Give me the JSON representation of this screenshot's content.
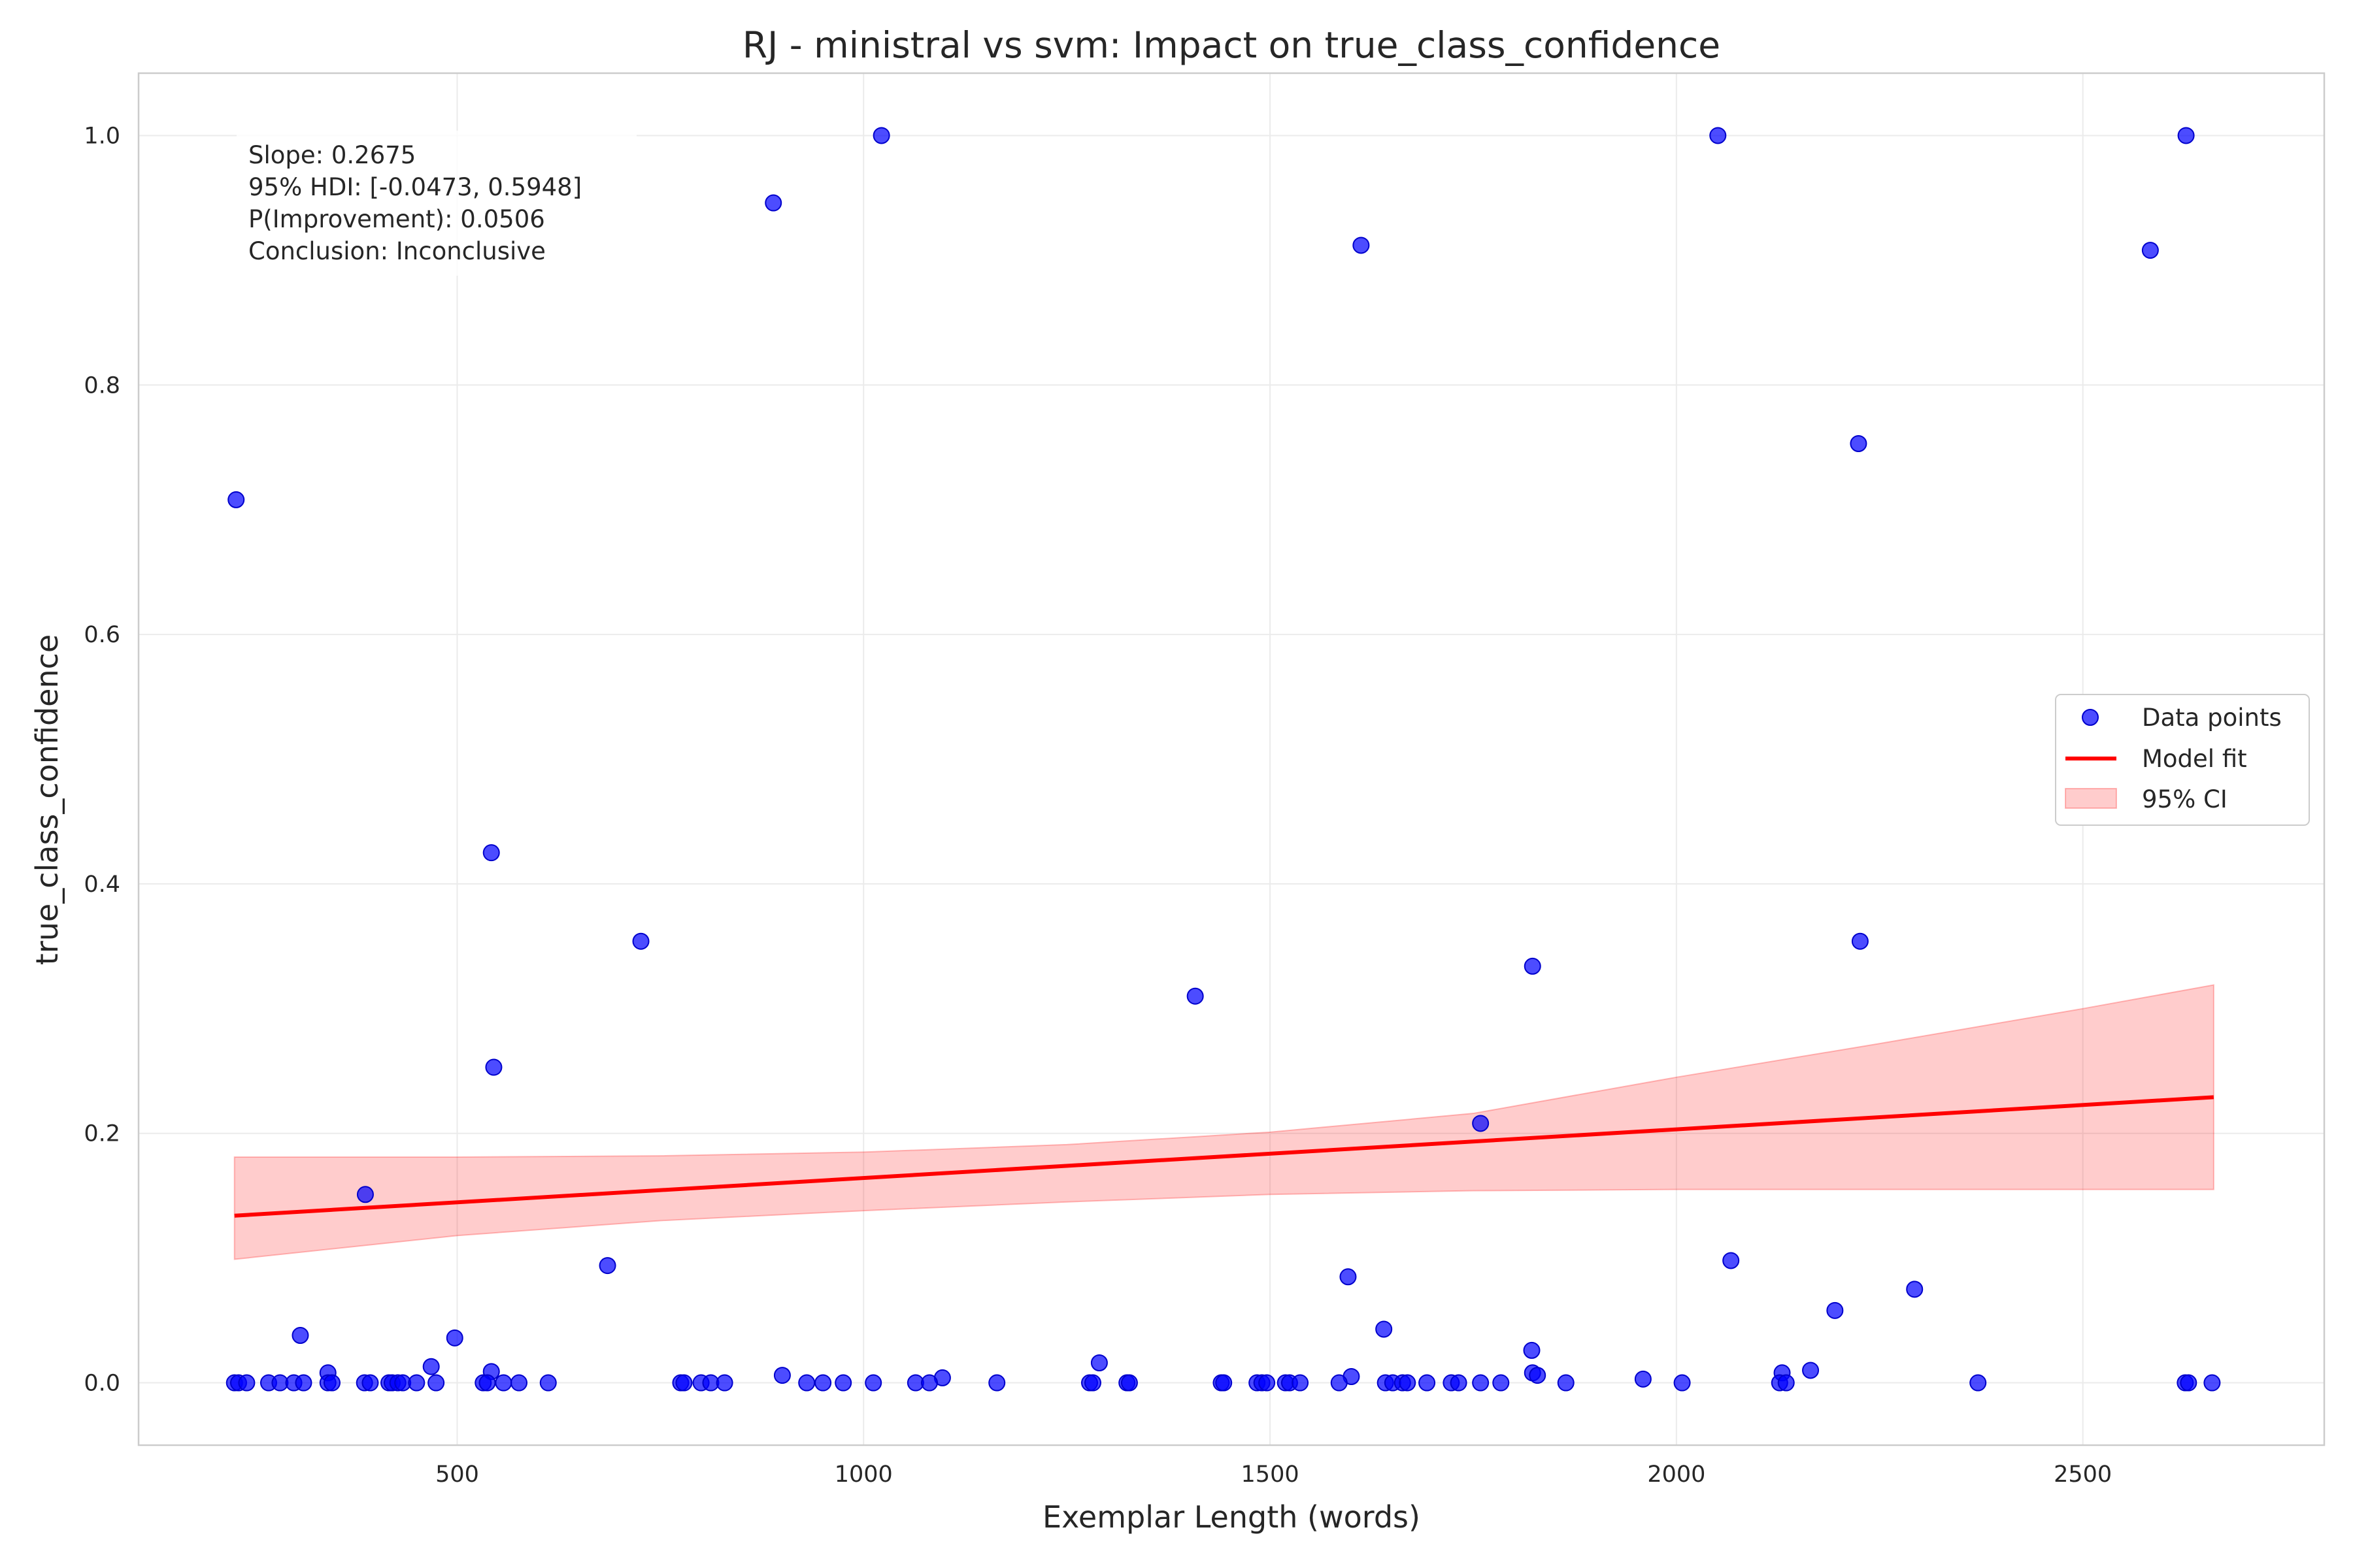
{
  "chart_data": {
    "type": "scatter",
    "title": "RJ - ministral vs svm: Impact on true_class_confidence",
    "xlabel": "Exemplar Length (words)",
    "ylabel": "true_class_confidence",
    "xlim": [
      108,
      2797
    ],
    "ylim": [
      -0.05,
      1.05
    ],
    "x_ticks": [
      500,
      1000,
      1500,
      2000,
      2500
    ],
    "x_tick_labels": [
      "500",
      "1000",
      "1500",
      "2000",
      "2500"
    ],
    "y_ticks": [
      0.0,
      0.2,
      0.4,
      0.6,
      0.8,
      1.0
    ],
    "y_tick_labels": [
      "0.0",
      "0.2",
      "0.4",
      "0.6",
      "0.8",
      "1.0"
    ],
    "grid": true,
    "legend_position": "center-right",
    "annotation": [
      "Slope: 0.2675",
      "95% HDI: [-0.0473, 0.5948]",
      "P(Improvement): 0.0506",
      "Conclusion: Inconclusive"
    ],
    "series": [
      {
        "name": "Data points",
        "kind": "scatter",
        "color": "#0000ff",
        "points": [
          [
            228,
            0.708
          ],
          [
            889,
            0.946
          ],
          [
            1022,
            1.0
          ],
          [
            1612,
            0.912
          ],
          [
            2051,
            1.0
          ],
          [
            2583,
            0.908
          ],
          [
            2627,
            1.0
          ],
          [
            2224,
            0.753
          ],
          [
            542,
            0.425
          ],
          [
            726,
            0.354
          ],
          [
            1408,
            0.31
          ],
          [
            1823,
            0.334
          ],
          [
            2226,
            0.354
          ],
          [
            545,
            0.253
          ],
          [
            1759,
            0.208
          ],
          [
            387,
            0.151
          ],
          [
            685,
            0.094
          ],
          [
            1596,
            0.085
          ],
          [
            2067,
            0.098
          ],
          [
            2293,
            0.075
          ],
          [
            2195,
            0.058
          ],
          [
            1640,
            0.043
          ],
          [
            307,
            0.038
          ],
          [
            497,
            0.036
          ],
          [
            1822,
            0.026
          ],
          [
            1290,
            0.016
          ],
          [
            468,
            0.013
          ],
          [
            2165,
            0.01
          ],
          [
            2130,
            0.008
          ],
          [
            1823,
            0.008
          ],
          [
            900,
            0.006
          ],
          [
            1097,
            0.004
          ],
          [
            1959,
            0.003
          ],
          [
            1600,
            0.005
          ],
          [
            1829,
            0.006
          ],
          [
            542,
            0.009
          ],
          [
            341,
            0.008
          ],
          [
            226,
            0.0
          ],
          [
            231,
            0.0
          ],
          [
            241,
            0.0
          ],
          [
            268,
            0.0
          ],
          [
            282,
            0.0
          ],
          [
            299,
            0.0
          ],
          [
            311,
            0.0
          ],
          [
            341,
            0.0
          ],
          [
            346,
            0.0
          ],
          [
            386,
            0.0
          ],
          [
            393,
            0.0
          ],
          [
            416,
            0.0
          ],
          [
            420,
            0.0
          ],
          [
            427,
            0.0
          ],
          [
            433,
            0.0
          ],
          [
            450,
            0.0
          ],
          [
            474,
            0.0
          ],
          [
            532,
            0.0
          ],
          [
            537,
            0.0
          ],
          [
            557,
            0.0
          ],
          [
            576,
            0.0
          ],
          [
            612,
            0.0
          ],
          [
            775,
            0.0
          ],
          [
            779,
            0.0
          ],
          [
            800,
            0.0
          ],
          [
            812,
            0.0
          ],
          [
            829,
            0.0
          ],
          [
            930,
            0.0
          ],
          [
            950,
            0.0
          ],
          [
            975,
            0.0
          ],
          [
            1012,
            0.0
          ],
          [
            1064,
            0.0
          ],
          [
            1081,
            0.0
          ],
          [
            1164,
            0.0
          ],
          [
            1278,
            0.0
          ],
          [
            1282,
            0.0
          ],
          [
            1324,
            0.0
          ],
          [
            1327,
            0.0
          ],
          [
            1440,
            0.0
          ],
          [
            1443,
            0.0
          ],
          [
            1484,
            0.0
          ],
          [
            1490,
            0.0
          ],
          [
            1496,
            0.0
          ],
          [
            1519,
            0.0
          ],
          [
            1524,
            0.0
          ],
          [
            1537,
            0.0
          ],
          [
            1585,
            0.0
          ],
          [
            1642,
            0.0
          ],
          [
            1651,
            0.0
          ],
          [
            1663,
            0.0
          ],
          [
            1669,
            0.0
          ],
          [
            1693,
            0.0
          ],
          [
            1723,
            0.0
          ],
          [
            1732,
            0.0
          ],
          [
            1759,
            0.0
          ],
          [
            1784,
            0.0
          ],
          [
            1864,
            0.0
          ],
          [
            2007,
            0.0
          ],
          [
            2127,
            0.0
          ],
          [
            2135,
            0.0
          ],
          [
            2371,
            0.0
          ],
          [
            2626,
            0.0
          ],
          [
            2630,
            0.0
          ],
          [
            2659,
            0.0
          ]
        ]
      },
      {
        "name": "Model fit",
        "kind": "line",
        "color": "#ff0000",
        "x": [
          226,
          2661
        ],
        "y": [
          0.134,
          0.229
        ]
      },
      {
        "name": "95% CI",
        "kind": "band",
        "color": "#ffcccc",
        "x": [
          226,
          500,
          750,
          1000,
          1250,
          1500,
          1750,
          2000,
          2250,
          2500,
          2661
        ],
        "lower": [
          0.099,
          0.118,
          0.13,
          0.138,
          0.145,
          0.151,
          0.154,
          0.155,
          0.155,
          0.155,
          0.155
        ],
        "upper": [
          0.181,
          0.181,
          0.182,
          0.185,
          0.191,
          0.201,
          0.216,
          0.245,
          0.272,
          0.3,
          0.319
        ]
      }
    ]
  }
}
